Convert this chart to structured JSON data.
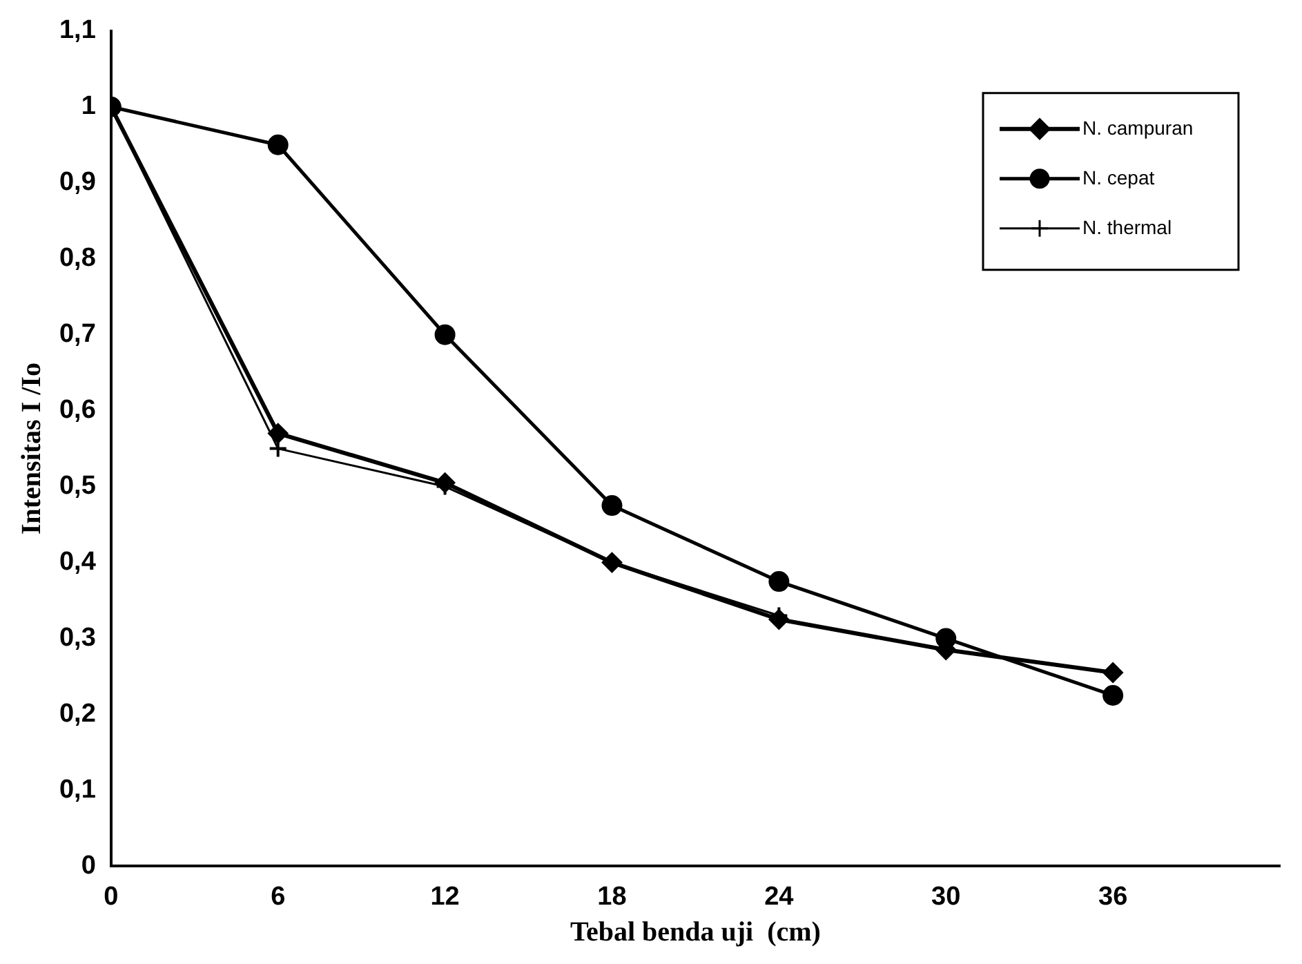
{
  "chart_data": {
    "type": "line",
    "xlabel": "Tebal benda uji  (cm)",
    "ylabel": "Intensitas I /Io",
    "x": [
      0,
      6,
      12,
      18,
      24,
      30,
      36
    ],
    "xlim": [
      0,
      42
    ],
    "xticks": [
      0,
      6,
      12,
      18,
      24,
      30,
      36
    ],
    "ylim": [
      0,
      1.1
    ],
    "yticks": [
      {
        "value": 0,
        "label": "0"
      },
      {
        "value": 0.1,
        "label": "0,1"
      },
      {
        "value": 0.2,
        "label": "0,2"
      },
      {
        "value": 0.3,
        "label": "0,3"
      },
      {
        "value": 0.4,
        "label": "0,4"
      },
      {
        "value": 0.5,
        "label": "0,5"
      },
      {
        "value": 0.6,
        "label": "0,6"
      },
      {
        "value": 0.7,
        "label": "0,7"
      },
      {
        "value": 0.8,
        "label": "0,8"
      },
      {
        "value": 0.9,
        "label": "0,9"
      },
      {
        "value": 1,
        "label": "1"
      },
      {
        "value": 1.1,
        "label": "1,1"
      }
    ],
    "legend": "top right",
    "series": [
      {
        "name": "N. campuran",
        "color": "#000000",
        "marker": "diamond",
        "values": [
          1,
          0.57,
          0.505,
          0.4,
          0.325,
          0.285,
          0.255
        ]
      },
      {
        "name": "N. cepat",
        "color": "#000000",
        "marker": "circle",
        "values": [
          1,
          0.95,
          0.7,
          0.475,
          0.375,
          0.3,
          0.225
        ]
      },
      {
        "name": "N. thermal",
        "color": "#000000",
        "marker": "cross",
        "values": [
          1,
          0.55,
          0.5,
          0.4,
          0.33,
          null,
          null
        ]
      }
    ]
  }
}
